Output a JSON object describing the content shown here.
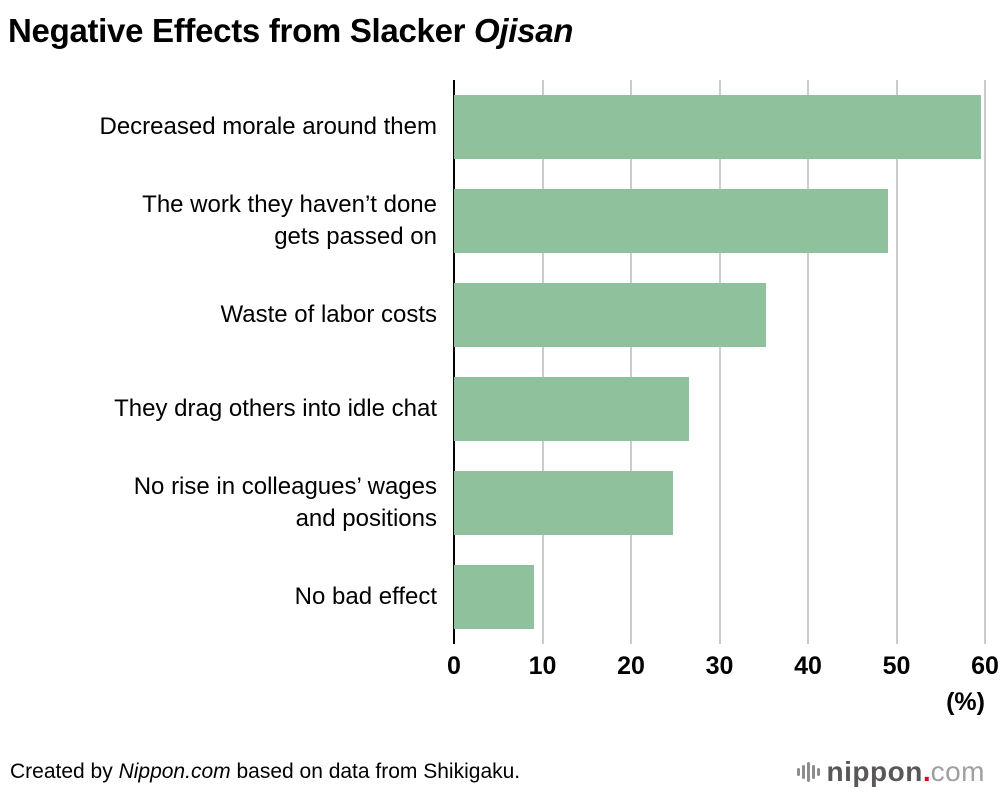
{
  "title": {
    "main": "Negative Effects from Slacker ",
    "italic": "Ojisan"
  },
  "chart_data": {
    "type": "bar",
    "orientation": "horizontal",
    "title": "Negative Effects from Slacker Ojisan",
    "categories": [
      "Decreased morale around them",
      "The work they haven’t done\ngets passed on",
      "Waste of labor costs",
      "They drag others into idle chat",
      "No rise in colleagues’ wages\nand positions",
      "No bad effect"
    ],
    "values": [
      59.5,
      49.0,
      35.3,
      26.6,
      24.7,
      9.0
    ],
    "xlim": [
      0,
      60
    ],
    "xticks": [
      0,
      10,
      20,
      30,
      40,
      50,
      60
    ],
    "unit_label": "(%)",
    "bar_color": "#8fc19c",
    "gridline_color": "#cccccc",
    "axis_color": "#000000",
    "grid": true,
    "legend": "none"
  },
  "footer": {
    "credit_prefix": "Created by ",
    "credit_source": "Nippon.com",
    "credit_suffix": " based on data from Shikigaku.",
    "logo": {
      "brand": "nippon",
      "separator": ".",
      "tld": "com",
      "brand_color": "#595757",
      "dot_color": "#e60012",
      "tld_color": "#9fa0a0"
    }
  }
}
